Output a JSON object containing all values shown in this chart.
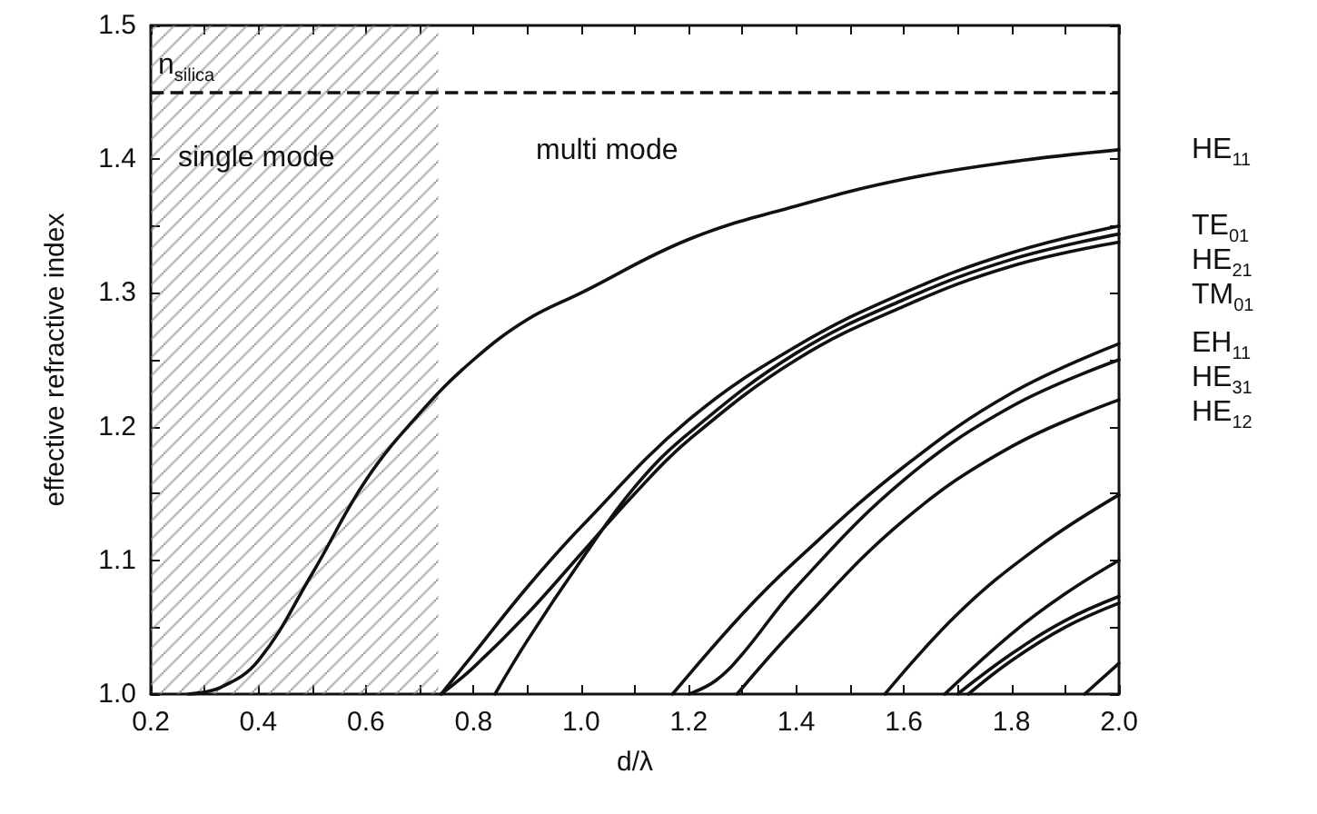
{
  "chart_data": {
    "type": "line",
    "xlabel": "d/λ",
    "ylabel": "effective refractive index",
    "xlim": [
      0.2,
      2.0
    ],
    "xticks": [
      0.2,
      {
        "value": 0.3,
        "label": null
      },
      0.4,
      {
        "value": 0.5,
        "label": null
      },
      0.6,
      {
        "value": 0.7,
        "label": null
      },
      0.8,
      {
        "value": 0.9,
        "label": null
      },
      {
        "value": 1.0,
        "label": "1.0"
      },
      {
        "value": 1.1,
        "label": null
      },
      1.2,
      {
        "value": 1.3,
        "label": null
      },
      1.4,
      {
        "value": 1.5,
        "label": null
      },
      1.6,
      {
        "value": 1.7,
        "label": null
      },
      1.8,
      {
        "value": 1.9,
        "label": null
      },
      {
        "value": 2.0,
        "label": "2.0"
      }
    ],
    "ylim": [
      1.0,
      1.5
    ],
    "yticks": [
      {
        "value": 1.0,
        "label": "1.0"
      },
      {
        "value": 1.05,
        "label": null
      },
      1.1,
      {
        "value": 1.15,
        "label": null
      },
      1.2,
      {
        "value": 1.25,
        "label": null
      },
      1.3,
      {
        "value": 1.35,
        "label": null
      },
      1.4,
      {
        "value": 1.45,
        "label": null
      },
      1.5
    ],
    "grid": false,
    "legend": false,
    "marker": "none",
    "line_style": "solid",
    "series": [
      {
        "name": "HE$_{11}$",
        "color": "#111111",
        "x": [
          0.27,
          0.33,
          0.4,
          0.5,
          0.6,
          0.7,
          0.8,
          0.9,
          1.0,
          1.2,
          1.4,
          1.6,
          1.8,
          2.0
        ],
        "values": [
          1.0,
          1.005,
          1.025,
          1.09,
          1.16,
          1.21,
          1.25,
          1.28,
          1.3,
          1.34,
          1.365,
          1.385,
          1.398,
          1.407
        ]
      },
      {
        "name": "TE$_{01}$",
        "color": "#111111",
        "x": [
          0.74,
          0.8,
          0.9,
          1.0,
          1.2,
          1.4,
          1.6,
          1.8,
          2.0
        ],
        "values": [
          1.0,
          1.03,
          1.08,
          1.125,
          1.205,
          1.26,
          1.3,
          1.33,
          1.35
        ]
      },
      {
        "name": "HE$_{21}$",
        "color": "#111111",
        "x": [
          0.84,
          0.9,
          1.0,
          1.1,
          1.2,
          1.4,
          1.6,
          1.8,
          2.0
        ],
        "values": [
          1.0,
          1.04,
          1.1,
          1.155,
          1.195,
          1.255,
          1.295,
          1.325,
          1.344
        ]
      },
      {
        "name": "TM$_{01}$",
        "color": "#111111",
        "x": [
          0.74,
          0.8,
          0.9,
          1.0,
          1.1,
          1.2,
          1.4,
          1.6,
          1.8,
          2.0
        ],
        "values": [
          1.0,
          1.02,
          1.06,
          1.105,
          1.15,
          1.19,
          1.25,
          1.29,
          1.32,
          1.338
        ]
      },
      {
        "name": "EH$_{11}$",
        "color": "#111111",
        "x": [
          1.17,
          1.3,
          1.4,
          1.6,
          1.8,
          2.0
        ],
        "values": [
          1.0,
          1.06,
          1.1,
          1.17,
          1.225,
          1.262
        ]
      },
      {
        "name": "HE$_{31}$",
        "color": "#111111",
        "x": [
          1.2,
          1.25,
          1.3,
          1.4,
          1.6,
          1.8,
          2.0
        ],
        "values": [
          1.0,
          1.01,
          1.03,
          1.08,
          1.16,
          1.215,
          1.25
        ]
      },
      {
        "name": "HE$_{12}$",
        "color": "#111111",
        "x": [
          1.29,
          1.4,
          1.6,
          1.8,
          2.0
        ],
        "values": [
          1.0,
          1.05,
          1.13,
          1.185,
          1.22
        ]
      },
      {
        "color": "#111111",
        "x": [
          1.565,
          1.7,
          1.85,
          2.0
        ],
        "values": [
          1.0,
          1.06,
          1.11,
          1.149
        ]
      },
      {
        "color": "#111111",
        "x": [
          1.676,
          1.8,
          1.9,
          2.0
        ],
        "values": [
          1.0,
          1.045,
          1.075,
          1.1
        ]
      },
      {
        "color": "#111111",
        "x": [
          1.7,
          1.8,
          1.9,
          2.0
        ],
        "values": [
          1.0,
          1.03,
          1.055,
          1.073
        ]
      },
      {
        "color": "#111111",
        "x": [
          1.72,
          1.8,
          1.9,
          2.0
        ],
        "values": [
          1.0,
          1.025,
          1.05,
          1.068
        ]
      },
      {
        "color": "#111111",
        "x": [
          1.936,
          2.0
        ],
        "values": [
          1.0,
          1.023
        ]
      }
    ],
    "ref_lines": [
      {
        "axis": "y",
        "value": 1.45,
        "label": "n$_{silica}$",
        "line_style": "dashed",
        "color": "#111111"
      }
    ],
    "bands": [
      {
        "axis": "x",
        "from": 0.2,
        "to": 0.735,
        "label": "single mode",
        "color": "#888888"
      }
    ],
    "annotations": [
      "multi mode"
    ]
  }
}
